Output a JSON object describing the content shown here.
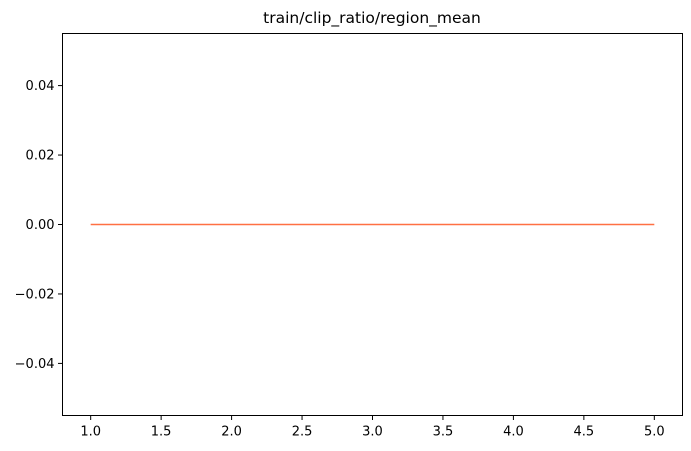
{
  "chart_data": {
    "type": "line",
    "title": "train/clip_ratio/region_mean",
    "xlabel": "",
    "ylabel": "",
    "xlim": [
      0.8,
      5.2
    ],
    "ylim": [
      -0.055,
      0.055
    ],
    "grid": false,
    "x_ticks": [
      1.0,
      1.5,
      2.0,
      2.5,
      3.0,
      3.5,
      4.0,
      4.5,
      5.0
    ],
    "x_tick_labels": [
      "1.0",
      "1.5",
      "2.0",
      "2.5",
      "3.0",
      "3.5",
      "4.0",
      "4.5",
      "5.0"
    ],
    "y_ticks": [
      -0.04,
      -0.02,
      0.0,
      0.02,
      0.04
    ],
    "y_tick_labels": [
      "−0.04",
      "−0.02",
      "0.00",
      "0.02",
      "0.04"
    ],
    "series": [
      {
        "color": "#ff7043",
        "x": [
          1,
          2,
          3,
          4,
          5
        ],
        "y": [
          0,
          0,
          0,
          0,
          0
        ]
      }
    ]
  }
}
